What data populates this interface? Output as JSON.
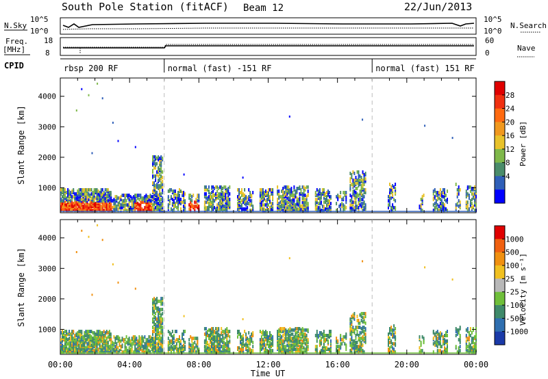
{
  "header": {
    "station": "South Pole Station (fitACF)",
    "beam": "Beam 12",
    "date": "22/Jun/2013"
  },
  "top_panels": {
    "nsky_label": "N.Sky",
    "nsky_ticks": [
      "10^5",
      "10^0"
    ],
    "nsearch_label": "N.Search",
    "nsearch_ticks": [
      "10^5",
      "10^0"
    ],
    "freq_label": "Freq.",
    "freq_unit": "[MHz]",
    "freq_ticks": [
      "18",
      "8"
    ],
    "nave_label": "Nave",
    "nave_ticks": [
      "60",
      "0"
    ],
    "cpid_label": "CPID",
    "cpid_segments": [
      {
        "label": "rbsp 200 RF",
        "start_hour": 0
      },
      {
        "label": "normal (fast) -151 RF",
        "start_hour": 6
      },
      {
        "label": "normal (fast) 151 RF",
        "start_hour": 18
      }
    ]
  },
  "chart_data": [
    {
      "type": "heatmap",
      "name": "power",
      "ylabel": "Slant Range [km]",
      "yticks": [
        1000,
        2000,
        3000,
        4000
      ],
      "ylim": [
        180,
        4600
      ],
      "xlim": [
        0,
        24
      ],
      "colorbar": {
        "label": "Power [dB]",
        "ticks": [
          "4",
          "8",
          "12",
          "16",
          "20",
          "24",
          "28"
        ],
        "colors": [
          "#0000ff",
          "#2f5fb8",
          "#4a8c6a",
          "#7fb84a",
          "#e8c22a",
          "#f0981e",
          "#ff6a10",
          "#f03010",
          "#e00000"
        ]
      }
    },
    {
      "type": "heatmap",
      "name": "velocity",
      "ylabel": "Slant Range [km]",
      "yticks": [
        1000,
        2000,
        3000,
        4000
      ],
      "ylim": [
        180,
        4600
      ],
      "xlim": [
        0,
        24
      ],
      "colorbar": {
        "label": "Velocity [m s⁻¹]",
        "ticks": [
          "1000",
          "500",
          "100",
          "25",
          "-25",
          "-100",
          "-500",
          "-1000"
        ],
        "colors": [
          "#1a3aa8",
          "#2f6fb0",
          "#3f8a6a",
          "#6fbf3a",
          "#b8b8b8",
          "#f0c020",
          "#f09010",
          "#f06010",
          "#e00000"
        ]
      }
    }
  ],
  "x_axis": {
    "ticks": [
      "00:00",
      "04:00",
      "08:00",
      "12:00",
      "16:00",
      "20:00",
      "00:00"
    ],
    "label": "Time UT"
  }
}
